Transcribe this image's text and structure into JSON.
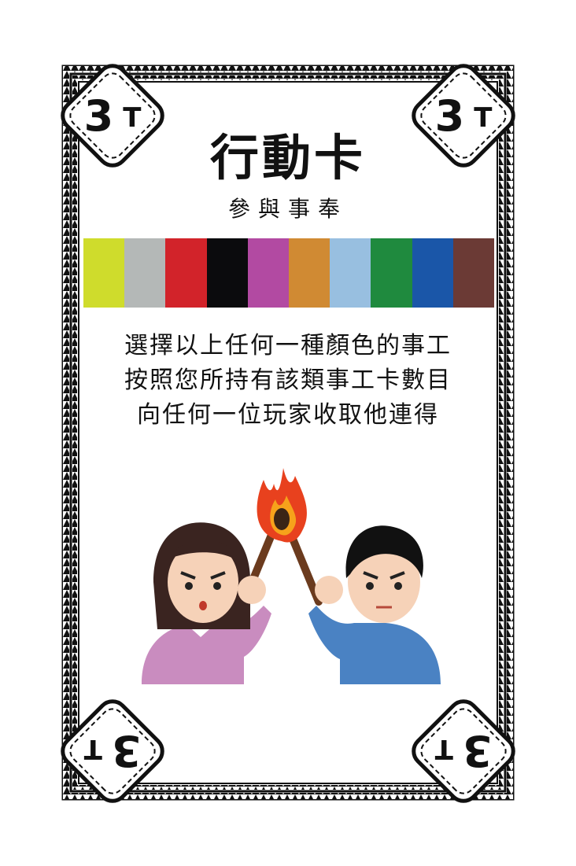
{
  "card": {
    "title": "行動卡",
    "subtitle": "參與事奉",
    "description": [
      "選擇以上任何一種顏色的事工",
      "按照您所持有該類事工卡數目",
      "向任何一位玩家收取他連得"
    ],
    "corner": {
      "number": "3",
      "unit": "T"
    },
    "color_swatches": [
      "#cfdc2c",
      "#b4b8b7",
      "#d2232a",
      "#0b0b0d",
      "#b24aa2",
      "#d08a33",
      "#98bfe0",
      "#1f8a3e",
      "#1a56a8",
      "#6b3a35"
    ],
    "illustration": "two-people-holding-torches"
  }
}
